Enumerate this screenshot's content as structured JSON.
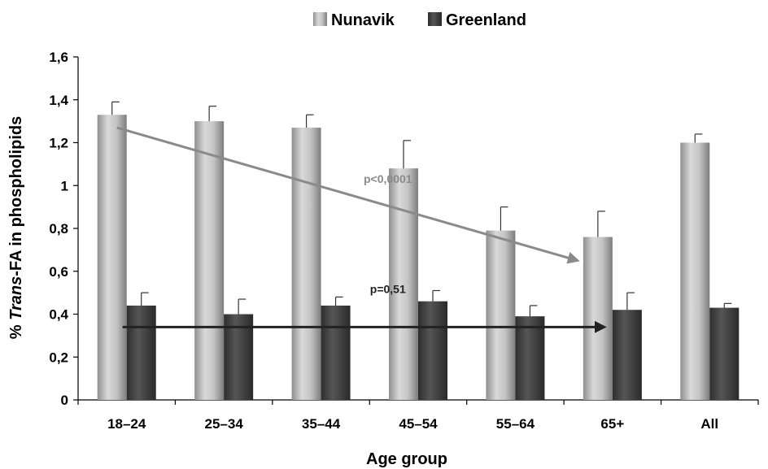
{
  "colors": {
    "nunavik": "#b3b3b3",
    "greenland": "#454545",
    "nunavik_trend": "#8a8a8a",
    "greenland_trend": "#222222",
    "axis": "#000000"
  },
  "chart_data": {
    "type": "bar",
    "categories": [
      "18–24",
      "25–34",
      "35–44",
      "45–54",
      "55–64",
      "65+",
      "All"
    ],
    "series": [
      {
        "name": "Nunavik",
        "values": [
          1.33,
          1.3,
          1.27,
          1.08,
          0.79,
          0.76,
          1.2
        ],
        "errors": [
          0.06,
          0.07,
          0.06,
          0.13,
          0.11,
          0.12,
          0.04
        ]
      },
      {
        "name": "Greenland",
        "values": [
          0.44,
          0.4,
          0.44,
          0.46,
          0.39,
          0.42,
          0.43
        ],
        "errors": [
          0.06,
          0.07,
          0.04,
          0.05,
          0.05,
          0.08,
          0.02
        ]
      }
    ],
    "xlabel": "Age group",
    "ylabel_prefix": "% ",
    "ylabel_italic": "Trans",
    "ylabel_suffix": "-FA in phospholipids",
    "ylim": [
      0,
      1.6
    ],
    "yticks": [
      0,
      0.2,
      0.4,
      0.6,
      0.8,
      1,
      1.2,
      1.4,
      1.6
    ],
    "ytick_labels": [
      "0",
      "0,2",
      "0,4",
      "0,6",
      "0,8",
      "1",
      "1,2",
      "1,4",
      "1,6"
    ],
    "legend_position": "top-center",
    "grid": false,
    "trends": [
      {
        "series": "Nunavik",
        "from_category": "18–24",
        "to_category": "65+",
        "from_value": 1.27,
        "to_value": 0.65,
        "label": "p<0,0001"
      },
      {
        "series": "Greenland",
        "from_category": "18–24",
        "to_category": "65+",
        "from_value": 0.34,
        "to_value": 0.34,
        "label": "p=0,51"
      }
    ]
  }
}
